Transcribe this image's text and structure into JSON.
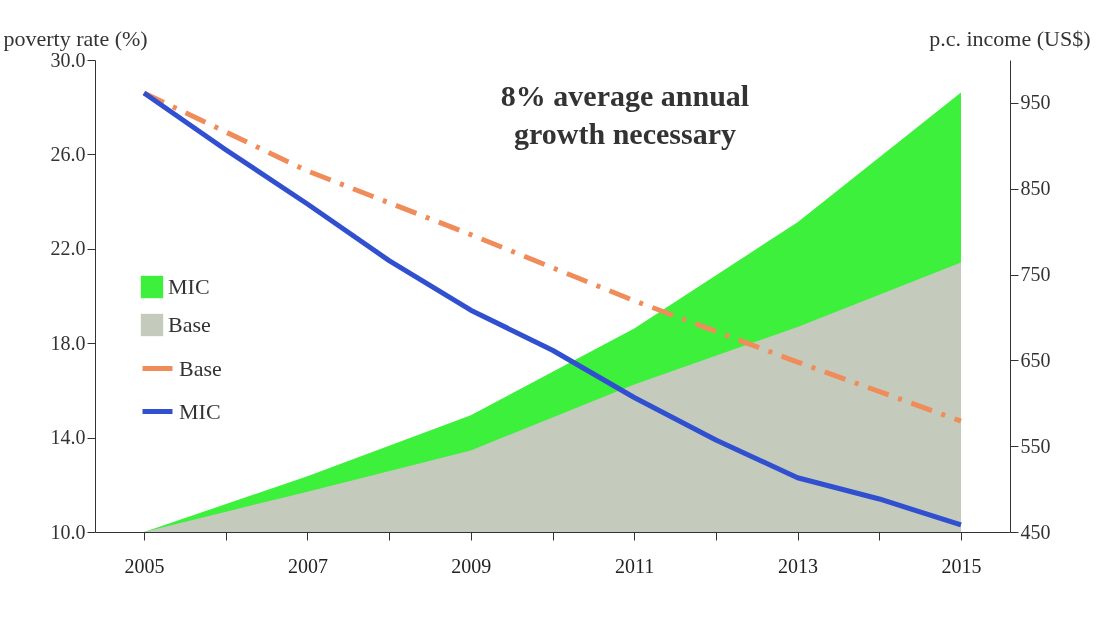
{
  "chart_data": {
    "type": "line",
    "ylabel": "poverty rate (%)",
    "y2label": "p.c. income (US$)",
    "annotations": [
      "8% average annual growth necessary"
    ],
    "x": [
      2005,
      2006,
      2007,
      2008,
      2009,
      2010,
      2011,
      2012,
      2013,
      2014,
      2015
    ],
    "xlim": [
      2004.4,
      2015.6
    ],
    "xticks": [
      2005,
      {
        "value": 2006,
        "label": null
      },
      2007,
      {
        "value": 2008,
        "label": null
      },
      2009,
      {
        "value": 2010,
        "label": null
      },
      2011,
      {
        "value": 2012,
        "label": null
      },
      2013,
      {
        "value": 2014,
        "label": null
      },
      2015
    ],
    "ylim": [
      10,
      30
    ],
    "yticks": [
      {
        "value": 10,
        "label": "10.0"
      },
      {
        "value": 14,
        "label": "14.0"
      },
      {
        "value": 18,
        "label": "18.0"
      },
      {
        "value": 22,
        "label": "22.0"
      },
      {
        "value": 26,
        "label": "26.0"
      },
      {
        "value": 30,
        "label": "30.0"
      }
    ],
    "y2lim": [
      450,
      1000
    ],
    "y2ticks": [
      450,
      550,
      650,
      750,
      850,
      950
    ],
    "legend": "left",
    "series": [
      {
        "name": "MIC",
        "type": "area",
        "axis": "y2",
        "color": "#3cf03c",
        "x": [
          2005,
          2007,
          2009,
          2011,
          2013,
          2015
        ],
        "values": [
          450,
          515,
          586,
          687,
          811,
          962
        ]
      },
      {
        "name": "Base",
        "type": "area",
        "axis": "y2",
        "color": "#c4cbbd",
        "x": [
          2005,
          2007,
          2009,
          2011,
          2013,
          2015
        ],
        "values": [
          450,
          497,
          545,
          622,
          689,
          764
        ]
      },
      {
        "name": "Base",
        "color": "#f08c5a",
        "line_style": "dashed",
        "x": [
          2005,
          2007,
          2009,
          2011,
          2013,
          2015
        ],
        "values": [
          28.6,
          25.3,
          22.6,
          19.8,
          17.2,
          14.7
        ]
      },
      {
        "name": "MIC",
        "color": "#3050d0",
        "line_style": "solid",
        "values": [
          28.6,
          26.2,
          23.9,
          21.5,
          19.4,
          17.7,
          15.7,
          13.9,
          12.3,
          11.4,
          10.3
        ]
      }
    ]
  }
}
